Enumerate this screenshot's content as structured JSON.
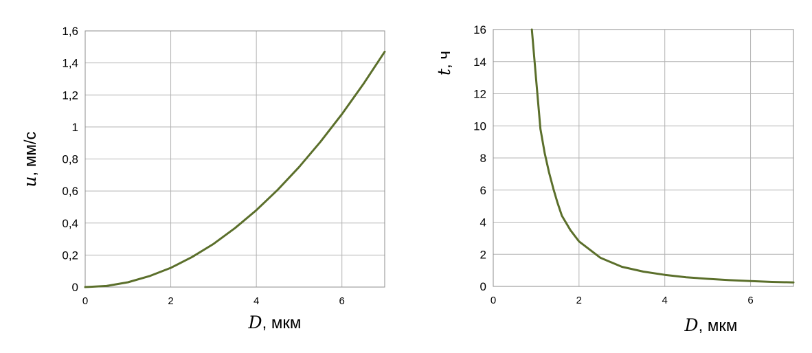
{
  "chart_data": [
    {
      "type": "line",
      "xlabel_symbol": "D",
      "xlabel_rest": ", мкм",
      "ylabel_symbol": "u",
      "ylabel_rest": ", мм/с",
      "xlim": [
        0,
        7
      ],
      "ylim": [
        0,
        1.6
      ],
      "x_ticks": [
        "0",
        "2",
        "4",
        "6"
      ],
      "y_ticks": [
        "0",
        "0,2",
        "0,4",
        "0,6",
        "0,8",
        "1",
        "1,2",
        "1,4",
        "1,6"
      ],
      "grid": true,
      "series": [
        {
          "x": [
            0,
            0.5,
            1,
            1.5,
            2,
            2.5,
            3,
            3.5,
            4,
            4.5,
            5,
            5.5,
            6,
            6.5,
            7
          ],
          "y": [
            0,
            0.007,
            0.03,
            0.068,
            0.12,
            0.188,
            0.27,
            0.368,
            0.48,
            0.608,
            0.75,
            0.908,
            1.08,
            1.268,
            1.47
          ],
          "color": "#5b6f2b"
        }
      ]
    },
    {
      "type": "line",
      "xlabel_symbol": "D",
      "xlabel_rest": ", мкм",
      "ylabel_symbol": "t",
      "ylabel_rest": ", ч",
      "xlim": [
        0,
        7
      ],
      "ylim": [
        0,
        16
      ],
      "x_ticks": [
        "0",
        "2",
        "4",
        "6"
      ],
      "y_ticks": [
        "0",
        "2",
        "4",
        "6",
        "8",
        "10",
        "12",
        "14",
        "16"
      ],
      "grid": true,
      "series": [
        {
          "x": [
            0.9,
            1.0,
            1.1,
            1.2,
            1.3,
            1.4,
            1.5,
            1.6,
            1.8,
            2.0,
            2.5,
            3.0,
            3.5,
            4.0,
            4.5,
            5.0,
            5.5,
            6.0,
            6.5,
            7.0
          ],
          "y": [
            16,
            12.9,
            9.8,
            8.3,
            7.1,
            6.1,
            5.2,
            4.4,
            3.5,
            2.8,
            1.78,
            1.22,
            0.92,
            0.72,
            0.57,
            0.47,
            0.39,
            0.33,
            0.28,
            0.25
          ],
          "color": "#5b6f2b"
        }
      ]
    }
  ]
}
